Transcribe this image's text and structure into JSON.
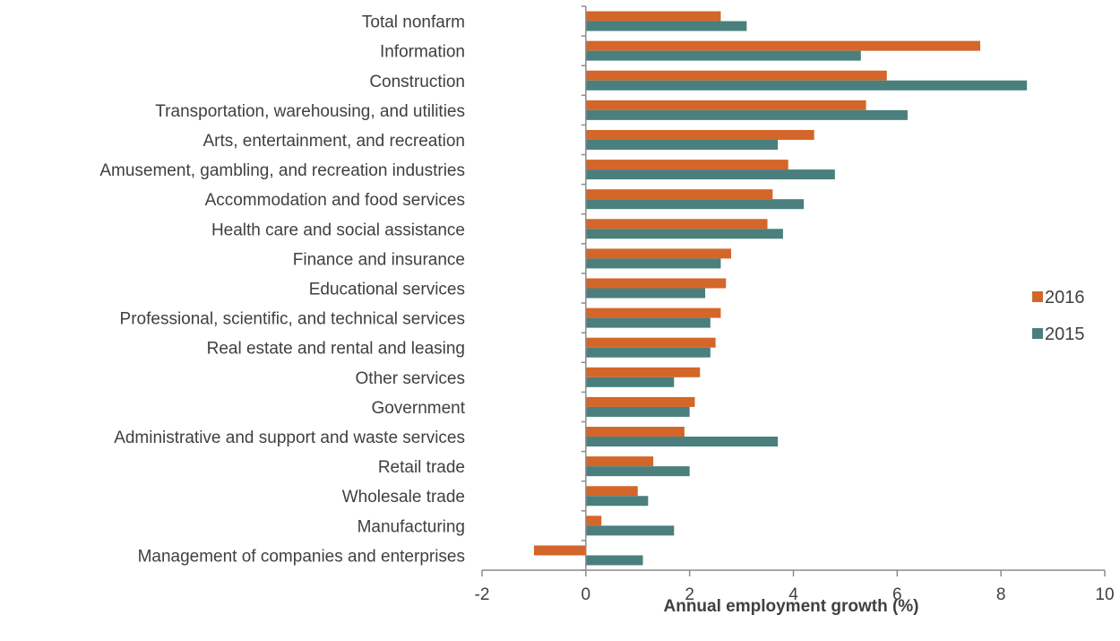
{
  "chart_data": {
    "type": "bar",
    "orientation": "horizontal",
    "categories": [
      "Total nonfarm",
      "Information",
      "Construction",
      "Transportation, warehousing, and utilities",
      "Arts, entertainment, and recreation",
      "Amusement, gambling, and recreation industries",
      "Accommodation and food services",
      "Health care and social assistance",
      "Finance and insurance",
      "Educational services",
      "Professional, scientific, and technical services",
      "Real estate and rental and leasing",
      "Other services",
      "Government",
      "Administrative and support and waste services",
      "Retail trade",
      "Wholesale trade",
      "Manufacturing",
      "Management of companies and enterprises"
    ],
    "series": [
      {
        "name": "2016",
        "color": "#d4662a",
        "values": [
          2.6,
          7.6,
          5.8,
          5.4,
          4.4,
          3.9,
          3.6,
          3.5,
          2.8,
          2.7,
          2.6,
          2.5,
          2.2,
          2.1,
          1.9,
          1.3,
          1.0,
          0.3,
          -1.0
        ]
      },
      {
        "name": "2015",
        "color": "#4a7f7d",
        "values": [
          3.1,
          5.3,
          8.5,
          6.2,
          3.7,
          4.8,
          4.2,
          3.8,
          2.6,
          2.3,
          2.4,
          2.4,
          1.7,
          2.0,
          3.7,
          2.0,
          1.2,
          1.7,
          1.1
        ]
      }
    ],
    "xlim": [
      -2,
      10
    ],
    "xticks": [
      "-2",
      "0",
      "2",
      "4",
      "6",
      "8",
      "10"
    ],
    "xlabel": "Annual employment growth (%)",
    "ylabel": "",
    "title": "",
    "legend": {
      "position": "right",
      "order": [
        "2016",
        "2015"
      ]
    },
    "grid": false
  }
}
